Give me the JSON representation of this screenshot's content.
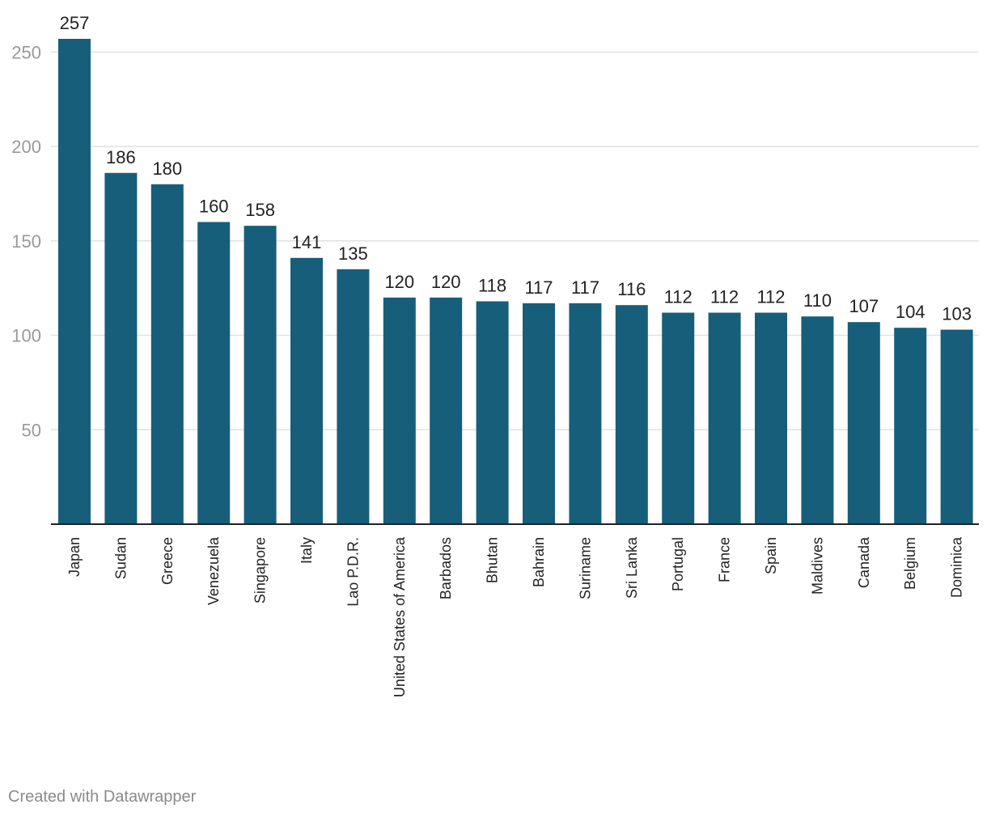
{
  "footer": {
    "credit": "Created with Datawrapper"
  },
  "colors": {
    "bar": "#175e7a",
    "grid": "#e1e1e1",
    "axis": "#222222",
    "tick_text": "#999999"
  },
  "chart_data": {
    "type": "bar",
    "title": "",
    "xlabel": "",
    "ylabel": "",
    "ylim": [
      0,
      257
    ],
    "yticks": [
      50,
      100,
      150,
      200,
      250
    ],
    "grid": true,
    "categories": [
      "Japan",
      "Sudan",
      "Greece",
      "Venezuela",
      "Singapore",
      "Italy",
      "Lao P.D.R.",
      "United States of America",
      "Barbados",
      "Bhutan",
      "Bahrain",
      "Suriname",
      "Sri Lanka",
      "Portugal",
      "France",
      "Spain",
      "Maldives",
      "Canada",
      "Belgium",
      "Dominica"
    ],
    "values": [
      257,
      186,
      180,
      160,
      158,
      141,
      135,
      120,
      120,
      118,
      117,
      117,
      116,
      112,
      112,
      112,
      110,
      107,
      104,
      103
    ]
  }
}
